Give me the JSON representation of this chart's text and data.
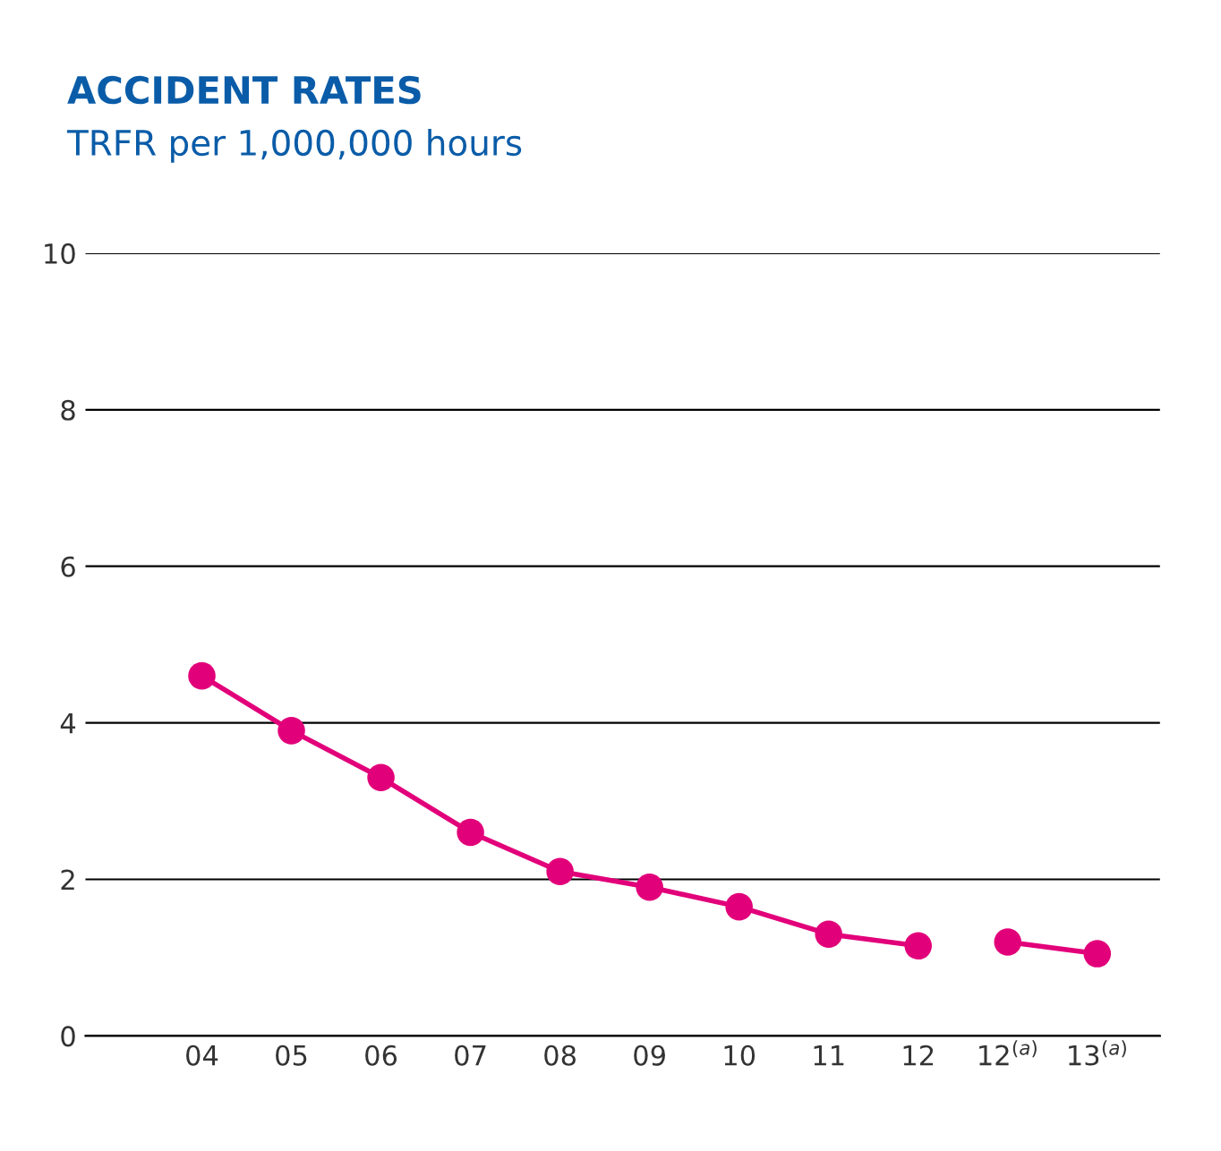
{
  "chart_data": {
    "type": "line",
    "title": "ACCIDENT RATES",
    "subtitle": "TRFR per 1,000,000 hours",
    "categories": [
      "04",
      "05",
      "06",
      "07",
      "08",
      "09",
      "10",
      "11",
      "12",
      "12$^{(a)}$",
      "13$^{(a)}$"
    ],
    "series": [
      {
        "color": "#e2007a",
        "values": [
          4.6,
          3.9,
          3.3,
          2.6,
          2.1,
          1.9,
          1.65,
          1.3,
          1.15,
          null,
          null
        ]
      },
      {
        "color": "#e2007a",
        "values": [
          null,
          null,
          null,
          null,
          null,
          null,
          null,
          null,
          null,
          1.2,
          1.05
        ]
      }
    ],
    "ylim": [
      0,
      10
    ],
    "yticks": [
      0,
      2,
      4,
      6,
      8,
      10
    ],
    "grid": "y",
    "marker": "circle",
    "line_style": "solid",
    "legend": false
  }
}
